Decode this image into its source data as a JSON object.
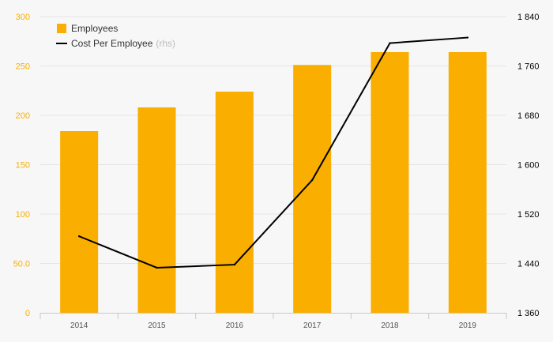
{
  "chart_data": {
    "type": "bar",
    "categories": [
      "2014",
      "2015",
      "2016",
      "2017",
      "2018",
      "2019"
    ],
    "series": [
      {
        "name": "Employees",
        "axis": "left",
        "kind": "bar",
        "color": "#f9ae00",
        "values": [
          184,
          208,
          224,
          251,
          264,
          264
        ]
      },
      {
        "name": "Cost Per Employee",
        "axis": "right",
        "kind": "line",
        "color": "#000000",
        "values": [
          1484,
          1433,
          1438,
          1575,
          1797,
          1806
        ]
      }
    ],
    "legend": {
      "placement": "top-left",
      "items": [
        {
          "label": "Employees",
          "note": ""
        },
        {
          "label": "Cost Per Employee",
          "note": "(rhs)"
        }
      ]
    },
    "y_left": {
      "range": [
        0,
        300
      ],
      "ticks": [
        {
          "value": 0,
          "label": "0"
        },
        {
          "value": 50,
          "label": "50.0"
        },
        {
          "value": 100,
          "label": "100"
        },
        {
          "value": 150,
          "label": "150"
        },
        {
          "value": 200,
          "label": "200"
        },
        {
          "value": 250,
          "label": "250"
        },
        {
          "value": 300,
          "label": "300"
        }
      ],
      "color": "#f9ae00"
    },
    "y_right": {
      "range": [
        1360,
        1840
      ],
      "ticks": [
        {
          "value": 1360,
          "label": "1 360"
        },
        {
          "value": 1440,
          "label": "1 440"
        },
        {
          "value": 1520,
          "label": "1 520"
        },
        {
          "value": 1600,
          "label": "1 600"
        },
        {
          "value": 1680,
          "label": "1 680"
        },
        {
          "value": 1760,
          "label": "1 760"
        },
        {
          "value": 1840,
          "label": "1 840"
        }
      ],
      "color": "#000000"
    },
    "grid": true,
    "colors": {
      "background": "#f7f7f7",
      "grid": "#e4e4e4",
      "axis": "#c8c8c8",
      "x_tick_text": "#555555",
      "note_text": "#bbbbbb"
    }
  }
}
